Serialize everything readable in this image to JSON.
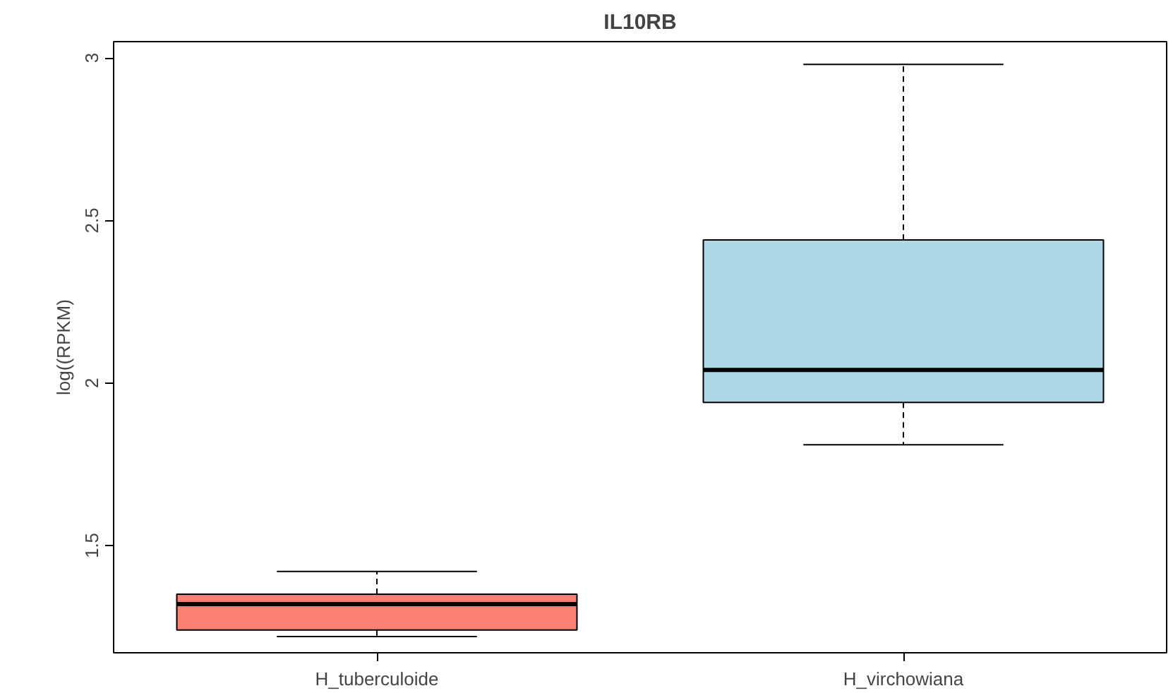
{
  "chart_data": {
    "type": "box",
    "title": "IL10RB",
    "ylabel": "log((RPKM)",
    "categories": [
      "H_tuberculoide",
      "H_virchowiana"
    ],
    "boxes": [
      {
        "low": 1.22,
        "q1": 1.24,
        "median": 1.32,
        "q3": 1.35,
        "high": 1.42
      },
      {
        "low": 1.81,
        "q1": 1.94,
        "median": 2.04,
        "q3": 2.44,
        "high": 2.98
      }
    ],
    "colors": [
      "#fa8072",
      "#add8e6"
    ],
    "ylim": [
      1.17,
      3.05
    ],
    "yticks": [
      1.5,
      2.0,
      2.5,
      3.0
    ],
    "grid": false,
    "line_style": "dashed"
  }
}
